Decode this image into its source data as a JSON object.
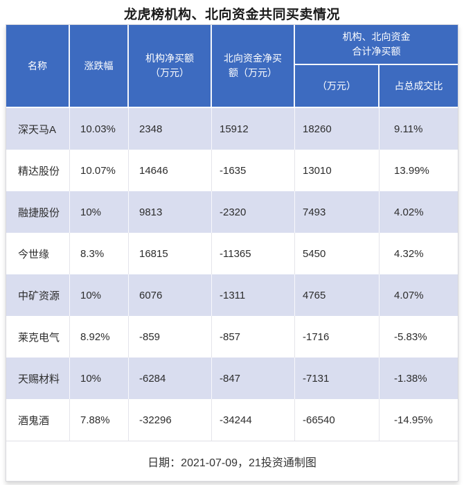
{
  "title": "龙虎榜机构、北向资金共同买卖情况",
  "header": {
    "name": "名称",
    "change": "涨跌幅",
    "inst_line1": "机构净买额",
    "inst_line2": "（万元）",
    "north_line1": "北向资金净买",
    "north_line2": "额（万元）",
    "combined_line1": "机构、北向资金",
    "combined_line2": "合计净买额",
    "combined_amount_label": "（万元）",
    "combined_ratio_label": "占总成交比"
  },
  "table": {
    "rows": [
      {
        "name": "深天马A",
        "change": "10.03%",
        "inst": "2348",
        "north": "15912",
        "combined": "18260",
        "ratio": "9.11%"
      },
      {
        "name": "精达股份",
        "change": "10.07%",
        "inst": "14646",
        "north": "-1635",
        "combined": "13010",
        "ratio": "13.99%"
      },
      {
        "name": "融捷股份",
        "change": "10%",
        "inst": "9813",
        "north": "-2320",
        "combined": "7493",
        "ratio": "4.02%"
      },
      {
        "name": "今世缘",
        "change": "8.3%",
        "inst": "16815",
        "north": "-11365",
        "combined": "5450",
        "ratio": "4.32%"
      },
      {
        "name": "中矿资源",
        "change": "10%",
        "inst": "6076",
        "north": "-1311",
        "combined": "4765",
        "ratio": "4.07%"
      },
      {
        "name": "莱克电气",
        "change": "8.92%",
        "inst": "-859",
        "north": "-857",
        "combined": "-1716",
        "ratio": "-5.83%"
      },
      {
        "name": "天赐材料",
        "change": "10%",
        "inst": "-6284",
        "north": "-847",
        "combined": "-7131",
        "ratio": "-1.38%"
      },
      {
        "name": "酒鬼酒",
        "change": "7.88%",
        "inst": "-32296",
        "north": "-34244",
        "combined": "-66540",
        "ratio": "-14.95%"
      }
    ]
  },
  "footer": {
    "note": "日期：2021-07-09，21投资通制图"
  },
  "colors": {
    "header_blue": "#3D6BC0",
    "row_alt": "#D9DDEF"
  },
  "chart_data": {
    "type": "table",
    "title": "龙虎榜机构、北向资金共同买卖情况",
    "columns": [
      "名称",
      "涨跌幅",
      "机构净买额（万元）",
      "北向资金净买额（万元）",
      "机构、北向资金合计净买额（万元）",
      "机构、北向资金合计净买额占总成交比"
    ],
    "rows": [
      [
        "深天马A",
        "10.03%",
        2348,
        15912,
        18260,
        "9.11%"
      ],
      [
        "精达股份",
        "10.07%",
        14646,
        -1635,
        13010,
        "13.99%"
      ],
      [
        "融捷股份",
        "10%",
        9813,
        -2320,
        7493,
        "4.02%"
      ],
      [
        "今世缘",
        "8.3%",
        16815,
        -11365,
        5450,
        "4.32%"
      ],
      [
        "中矿资源",
        "10%",
        6076,
        -1311,
        4765,
        "4.07%"
      ],
      [
        "莱克电气",
        "8.92%",
        -859,
        -857,
        -1716,
        "-5.83%"
      ],
      [
        "天赐材料",
        "10%",
        -6284,
        -847,
        -7131,
        "-1.38%"
      ],
      [
        "酒鬼酒",
        "7.88%",
        -32296,
        -34244,
        -66540,
        "-14.95%"
      ]
    ],
    "note": "日期：2021-07-09，21投资通制图"
  }
}
